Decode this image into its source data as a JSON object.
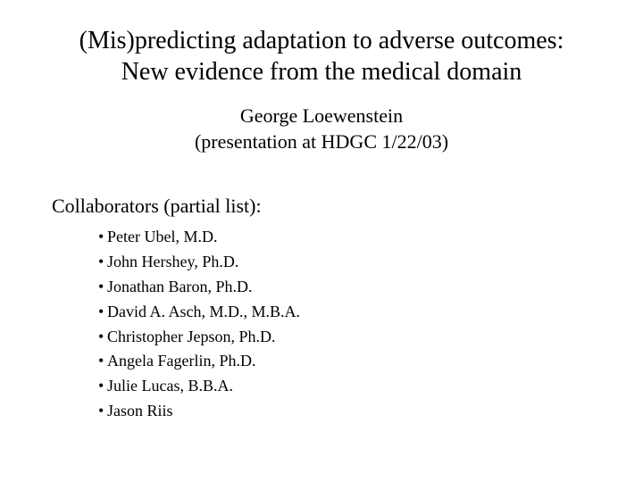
{
  "title": {
    "line1": "(Mis)predicting adaptation to adverse outcomes:",
    "line2": "New evidence from the medical domain"
  },
  "subtitle": {
    "line1": "George Loewenstein",
    "line2": "(presentation at HDGC 1/22/03)"
  },
  "collaborators": {
    "heading": "Collaborators (partial list):",
    "items": [
      "Peter Ubel, M.D.",
      "John Hershey, Ph.D.",
      "Jonathan Baron, Ph.D.",
      "David A. Asch, M.D., M.B.A.",
      "Christopher Jepson, Ph.D.",
      "Angela Fagerlin, Ph.D.",
      "Julie Lucas, B.B.A.",
      "Jason Riis"
    ]
  },
  "style": {
    "background_color": "#ffffff",
    "text_color": "#000000",
    "font_family": "Times New Roman",
    "title_fontsize": 28,
    "subtitle_fontsize": 22,
    "heading_fontsize": 22,
    "item_fontsize": 18,
    "bullet_char": "•"
  }
}
